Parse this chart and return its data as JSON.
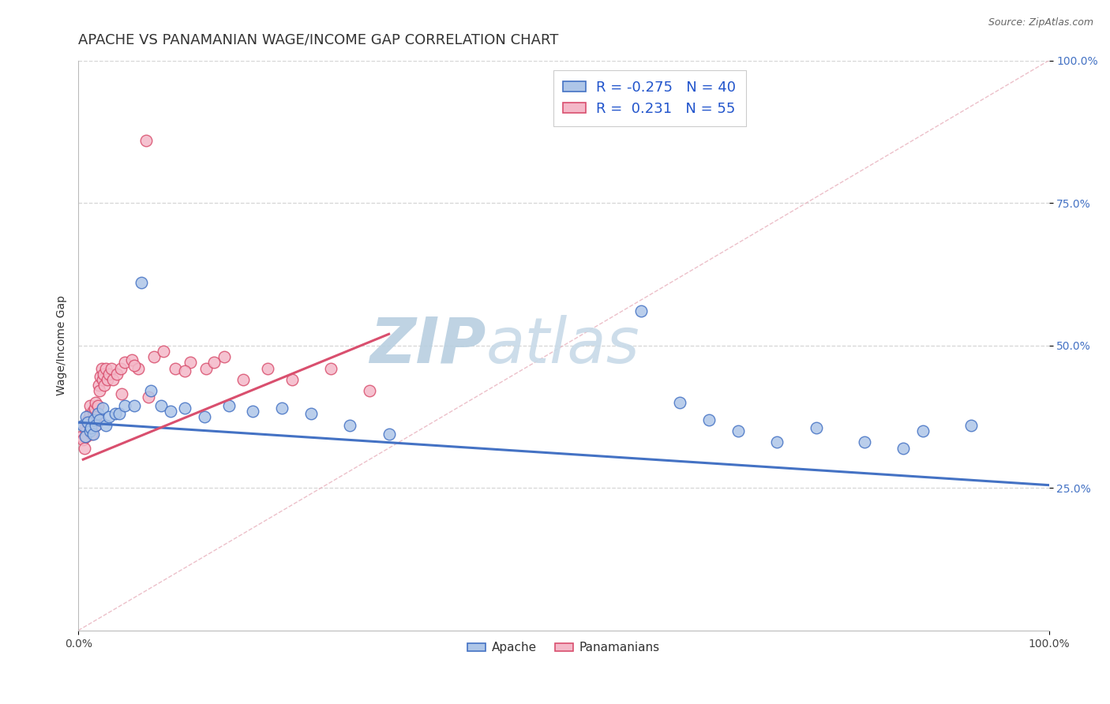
{
  "title": "APACHE VS PANAMANIAN WAGE/INCOME GAP CORRELATION CHART",
  "source_text": "Source: ZipAtlas.com",
  "ylabel": "Wage/Income Gap",
  "xlim": [
    0.0,
    1.0
  ],
  "ylim": [
    0.0,
    1.0
  ],
  "apache_R": -0.275,
  "apache_N": 40,
  "panamanian_R": 0.231,
  "panamanian_N": 55,
  "apache_color": "#aec6e8",
  "apache_line_color": "#4472c4",
  "panamanian_color": "#f4b8c8",
  "panamanian_line_color": "#d94f6e",
  "apache_scatter_x": [
    0.005,
    0.007,
    0.008,
    0.01,
    0.012,
    0.013,
    0.015,
    0.016,
    0.018,
    0.02,
    0.022,
    0.025,
    0.028,
    0.032,
    0.038,
    0.042,
    0.048,
    0.058,
    0.065,
    0.075,
    0.085,
    0.095,
    0.11,
    0.13,
    0.155,
    0.18,
    0.21,
    0.24,
    0.28,
    0.32,
    0.58,
    0.62,
    0.65,
    0.68,
    0.72,
    0.76,
    0.81,
    0.85,
    0.87,
    0.92
  ],
  "apache_scatter_y": [
    0.36,
    0.34,
    0.375,
    0.365,
    0.35,
    0.355,
    0.345,
    0.37,
    0.36,
    0.38,
    0.37,
    0.39,
    0.36,
    0.375,
    0.38,
    0.38,
    0.395,
    0.395,
    0.61,
    0.42,
    0.395,
    0.385,
    0.39,
    0.375,
    0.395,
    0.385,
    0.39,
    0.38,
    0.36,
    0.345,
    0.56,
    0.4,
    0.37,
    0.35,
    0.33,
    0.355,
    0.33,
    0.32,
    0.35,
    0.36
  ],
  "panamanian_scatter_x": [
    0.003,
    0.005,
    0.006,
    0.007,
    0.008,
    0.008,
    0.01,
    0.01,
    0.011,
    0.012,
    0.012,
    0.013,
    0.014,
    0.015,
    0.015,
    0.016,
    0.017,
    0.018,
    0.018,
    0.019,
    0.02,
    0.021,
    0.022,
    0.023,
    0.024,
    0.025,
    0.026,
    0.027,
    0.028,
    0.03,
    0.032,
    0.034,
    0.036,
    0.04,
    0.044,
    0.048,
    0.055,
    0.062,
    0.07,
    0.078,
    0.088,
    0.1,
    0.115,
    0.132,
    0.15,
    0.17,
    0.195,
    0.22,
    0.26,
    0.3,
    0.045,
    0.058,
    0.072,
    0.11,
    0.14
  ],
  "panamanian_scatter_y": [
    0.34,
    0.335,
    0.32,
    0.355,
    0.35,
    0.34,
    0.365,
    0.37,
    0.36,
    0.38,
    0.395,
    0.36,
    0.345,
    0.385,
    0.37,
    0.38,
    0.39,
    0.36,
    0.4,
    0.375,
    0.395,
    0.43,
    0.42,
    0.445,
    0.46,
    0.44,
    0.45,
    0.43,
    0.46,
    0.44,
    0.45,
    0.46,
    0.44,
    0.45,
    0.46,
    0.47,
    0.475,
    0.46,
    0.86,
    0.48,
    0.49,
    0.46,
    0.47,
    0.46,
    0.48,
    0.44,
    0.46,
    0.44,
    0.46,
    0.42,
    0.415,
    0.465,
    0.41,
    0.455,
    0.47
  ],
  "background_color": "#ffffff",
  "grid_color": "#cccccc",
  "watermark_text1": "ZIP",
  "watermark_text2": "atlas",
  "watermark_color1": "#c5d8ed",
  "watermark_color2": "#b8cfe8",
  "title_fontsize": 13,
  "axis_label_fontsize": 10,
  "tick_fontsize": 10,
  "legend_fontsize": 13
}
